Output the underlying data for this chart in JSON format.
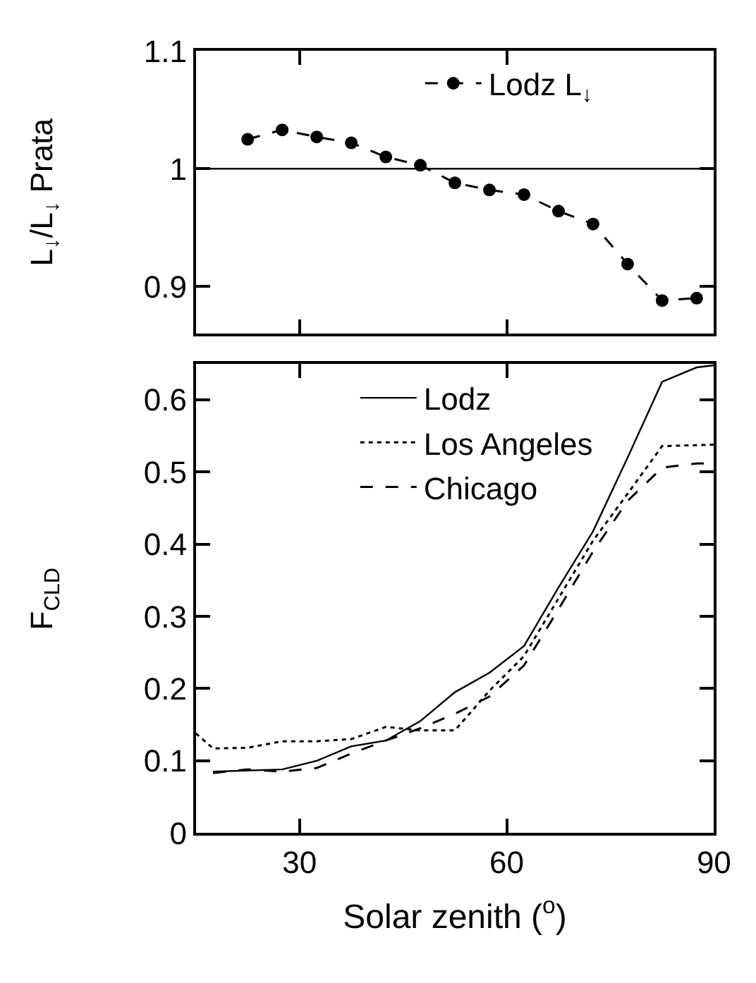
{
  "chart_data": [
    {
      "type": "line",
      "ylabel": "L$_{↓}$/L$_{↓}$ Prata",
      "x": [
        22.5,
        27.5,
        32.5,
        37.5,
        42.5,
        47.5,
        52.5,
        57.5,
        62.5,
        67.5,
        72.5,
        77.5,
        82.5,
        87.5
      ],
      "series": [
        {
          "name": "Lodz L$_{↓}$",
          "color": "#000000",
          "marker": "circle",
          "line_style": "dashed",
          "values": [
            1.025,
            1.033,
            1.027,
            1.022,
            1.01,
            1.003,
            0.988,
            0.982,
            0.978,
            0.964,
            0.953,
            0.919,
            0.888,
            0.89
          ]
        }
      ],
      "xlim": [
        15,
        90
      ],
      "xticks": [
        30,
        60,
        90
      ],
      "ylim": [
        0.86,
        1.1
      ],
      "yticks": [
        0.9,
        1,
        1.1
      ],
      "tick_labels": "y",
      "ref_lines": [
        {
          "axis": "y",
          "value": 1,
          "color": "#000000",
          "line_style": "solid"
        }
      ],
      "legend": "top right"
    },
    {
      "type": "line",
      "xlabel": "Solar zenith ($^{o}$)",
      "ylabel": "F$_{CLD}$",
      "series": [
        {
          "name": "Lodz",
          "color": "#000000",
          "line_style": "solid",
          "x": [
            17.5,
            27.5,
            32.5,
            37.5,
            42.5,
            47.5,
            52.5,
            57.5,
            62.5,
            67.5,
            72.5,
            77.5,
            82.5,
            87.5,
            90
          ],
          "values": [
            0.085,
            0.088,
            0.1,
            0.12,
            0.128,
            0.155,
            0.195,
            0.222,
            0.259,
            0.34,
            0.418,
            0.52,
            0.625,
            0.645,
            0.648
          ]
        },
        {
          "name": "Los Angeles",
          "color": "#000000",
          "line_style": "dotted",
          "x": [
            15,
            17.5,
            22.5,
            27.5,
            32.5,
            37.5,
            42.5,
            47.5,
            52.5,
            57.5,
            62.5,
            67.5,
            72.5,
            77.5,
            82.5,
            90
          ],
          "values": [
            0.138,
            0.117,
            0.118,
            0.127,
            0.127,
            0.13,
            0.147,
            0.142,
            0.142,
            0.197,
            0.245,
            0.325,
            0.405,
            0.47,
            0.536,
            0.538
          ]
        },
        {
          "name": "Chicago",
          "color": "#000000",
          "line_style": "dashed",
          "x": [
            17.5,
            22.5,
            27.5,
            32.5,
            37.5,
            42.5,
            47.5,
            52.5,
            57.5,
            62.5,
            67.5,
            72.5,
            77.5,
            82.5,
            87.5,
            90
          ],
          "values": [
            0.083,
            0.088,
            0.085,
            0.09,
            0.11,
            0.128,
            0.145,
            0.165,
            0.189,
            0.232,
            0.31,
            0.39,
            0.46,
            0.506,
            0.512,
            0.512
          ]
        }
      ],
      "xlim": [
        15,
        90
      ],
      "xticks": [
        30,
        60,
        90
      ],
      "ylim": [
        0,
        0.65
      ],
      "yticks": [
        0,
        0.1,
        0.2,
        0.3,
        0.4,
        0.5,
        0.6
      ],
      "legend": "top right"
    }
  ]
}
